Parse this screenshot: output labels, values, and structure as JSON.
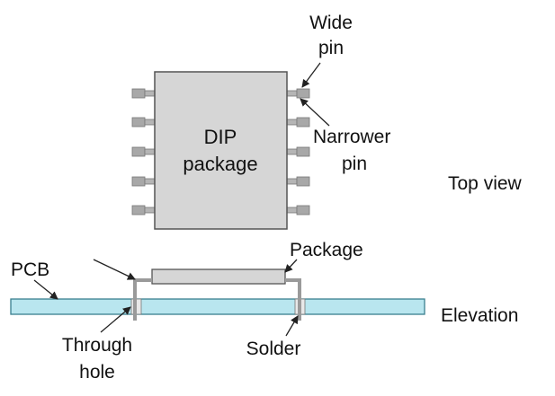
{
  "labels": {
    "wide_pin": [
      "Wide",
      "pin"
    ],
    "narrower_pin": [
      "Narrower",
      "pin"
    ],
    "dip_package": [
      "DIP",
      "package"
    ],
    "top_view": "Top view",
    "package": "Package",
    "pcb": "PCB",
    "elevation": "Elevation",
    "through_hole": [
      "Through",
      "hole"
    ],
    "solder": "Solder"
  },
  "colors": {
    "package_fill": "#d6d6d6",
    "package_stroke": "#555555",
    "pin_fill": "#a8a8a8",
    "pcb_fill": "#b9e6ef",
    "pcb_stroke": "#3a7f8e",
    "solder": "#e8e8e8",
    "text": "#111111",
    "arrow": "#222222"
  },
  "pins_per_side": 5
}
